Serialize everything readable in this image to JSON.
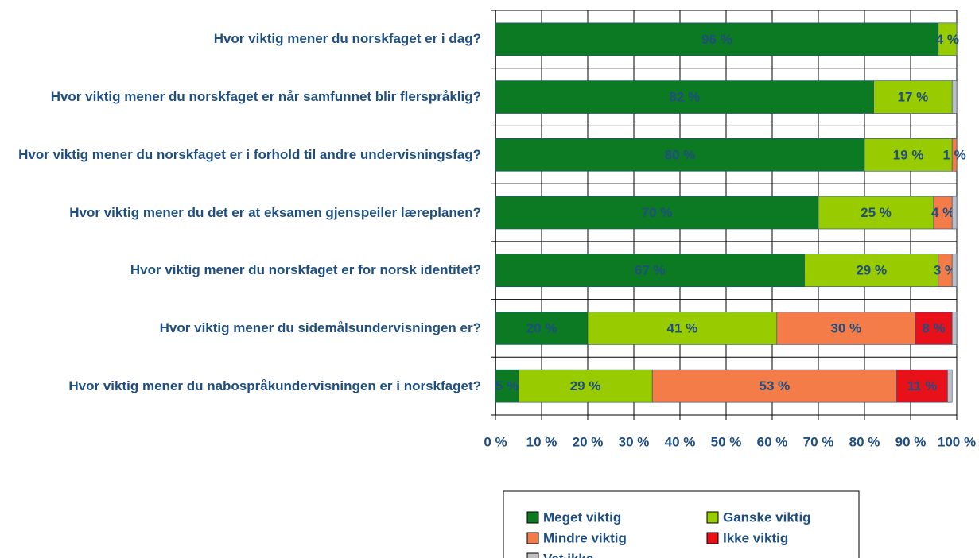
{
  "chart_data": {
    "type": "stacked_barh",
    "categories": [
      "Hvor viktig mener du norskfaget er i dag?",
      "Hvor viktig mener du norskfaget er når samfunnet blir flerspråklig?",
      "Hvor viktig mener du norskfaget er i forhold til andre undervisningsfag?",
      "Hvor viktig mener du det er at eksamen gjenspeiler læreplanen?",
      "Hvor viktig mener du norskfaget er for norsk identitet?",
      "Hvor viktig mener du sidemålsundervisningen er?",
      "Hvor viktig mener du nabospråkundervisningen er i norskfaget?"
    ],
    "series": [
      {
        "name": "Meget viktig",
        "color": "#0b7a22",
        "values": [
          96,
          82,
          80,
          70,
          67,
          20,
          5
        ],
        "value_labels": [
          "96 %",
          "82 %",
          "80 %",
          "70 %",
          "67 %",
          "20 %",
          "5 %"
        ]
      },
      {
        "name": "Ganske viktig",
        "color": "#99cc00",
        "values": [
          4,
          17,
          19,
          25,
          29,
          41,
          29
        ],
        "value_labels": [
          "4 %",
          "17 %",
          "19 %",
          "25 %",
          "29 %",
          "41 %",
          "29 %"
        ]
      },
      {
        "name": "Mindre viktig",
        "color": "#f47c48",
        "values": [
          0,
          0,
          1,
          4,
          3,
          30,
          53
        ],
        "value_labels": [
          null,
          null,
          "1 %",
          "4 %",
          "3 %",
          "30 %",
          "53 %"
        ]
      },
      {
        "name": "Ikke viktig",
        "color": "#e8111a",
        "values": [
          0,
          0,
          0,
          0,
          0,
          8,
          11
        ],
        "value_labels": [
          null,
          null,
          null,
          null,
          null,
          "8 %",
          "11 %"
        ]
      },
      {
        "name": "Vet ikke",
        "color": "#c0c0c0",
        "values": [
          0,
          1,
          0,
          1,
          1,
          1,
          1
        ],
        "value_labels": [
          null,
          null,
          null,
          null,
          null,
          null,
          null
        ]
      }
    ],
    "xlim": [
      0,
      100
    ],
    "xticks": [
      {
        "value": 0,
        "label": "0 %"
      },
      {
        "value": 10,
        "label": "10 %"
      },
      {
        "value": 20,
        "label": "20 %"
      },
      {
        "value": 30,
        "label": "30 %"
      },
      {
        "value": 40,
        "label": "40 %"
      },
      {
        "value": 50,
        "label": "50 %"
      },
      {
        "value": 60,
        "label": "60 %"
      },
      {
        "value": 70,
        "label": "70 %"
      },
      {
        "value": 80,
        "label": "80 %"
      },
      {
        "value": 90,
        "label": "90 %"
      },
      {
        "value": 100,
        "label": "100 %"
      }
    ],
    "grid": true,
    "legend": "bottom"
  }
}
